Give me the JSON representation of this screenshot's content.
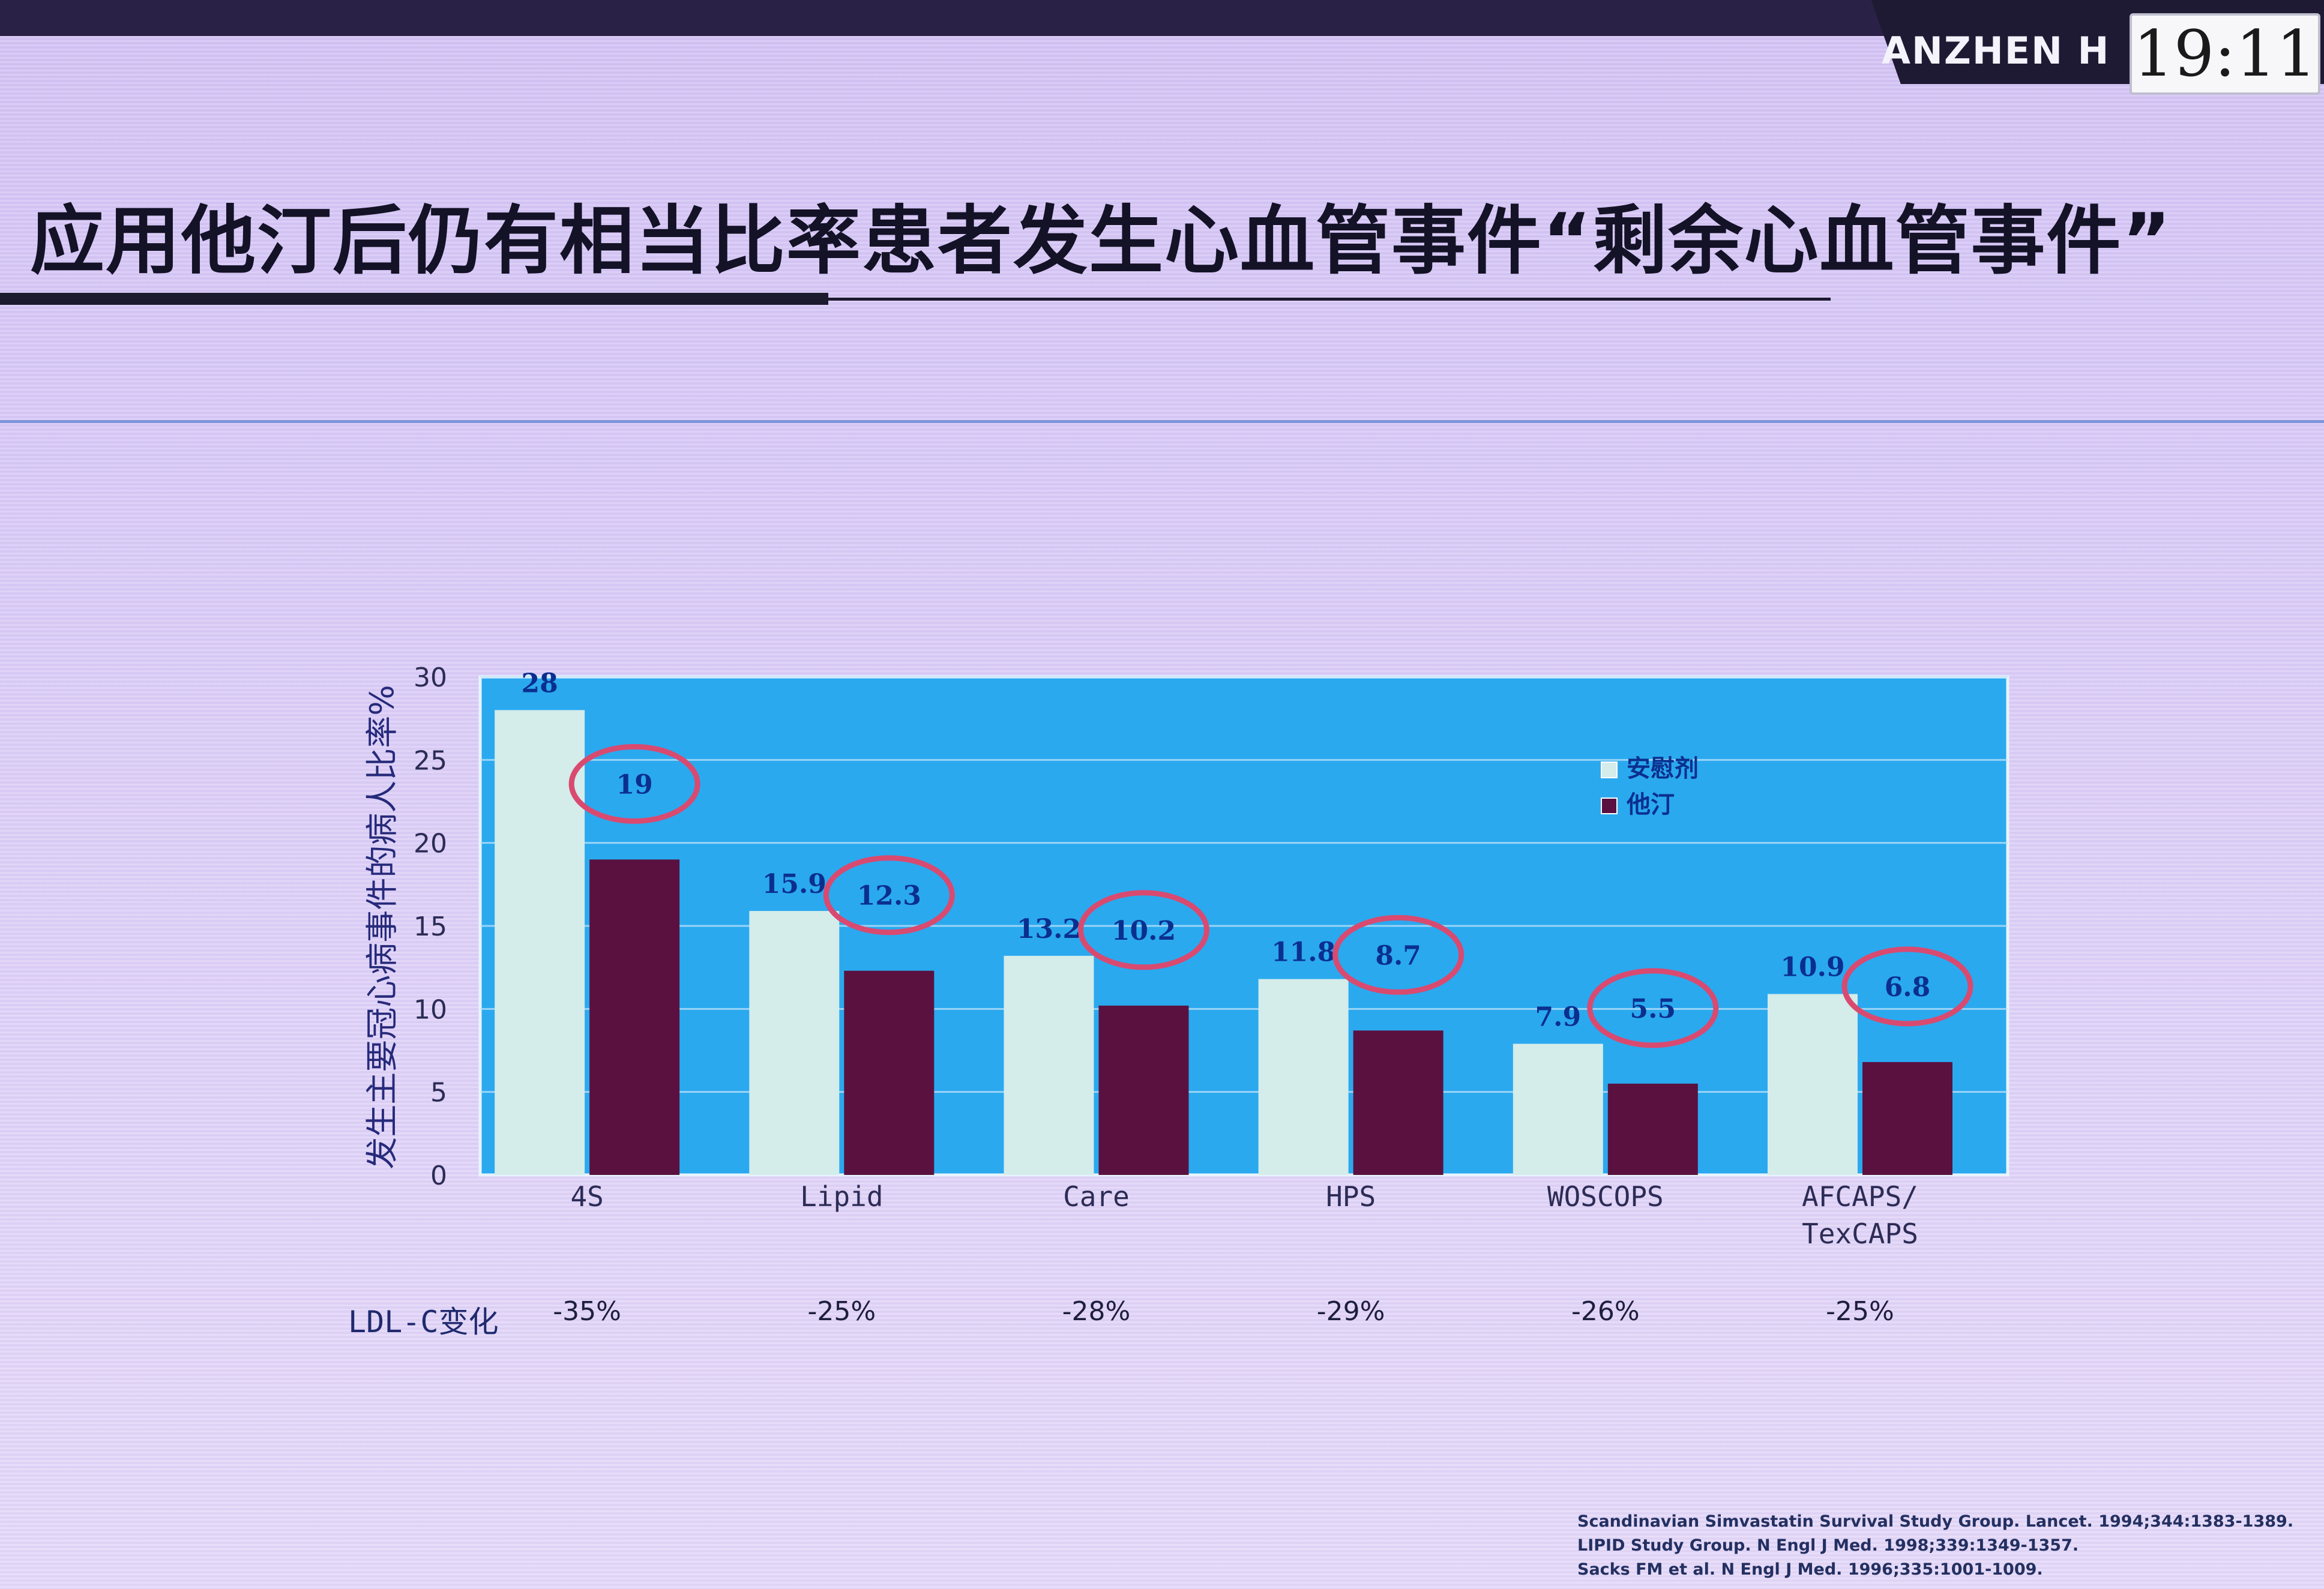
{
  "header": {
    "brand": "ANZHEN H",
    "clock": "19:11"
  },
  "slide": {
    "title": "应用他汀后仍有相当比率患者发生心血管事件“剩余心血管事件”",
    "ldl_label": "LDL-C变化",
    "references": [
      "Scandinavian Simvastatin Survival Study Group. Lancet. 1994;344:1383-1389.",
      "LIPID Study Group. N Engl J Med. 1998;339:1349-1357.",
      "Sacks FM et al. N Engl J Med. 1996;335:1001-1009."
    ]
  },
  "colors": {
    "plot_bg": "#2aa9ef",
    "placebo": "#d4ecea",
    "statin": "#5a1140",
    "value_text": "#0b2f8e",
    "circle": "#d94a70"
  },
  "chart_data": {
    "type": "bar",
    "title": "",
    "xlabel": "",
    "ylabel": "发生主要冠心病事件的病人比率%",
    "ylim": [
      0,
      30
    ],
    "yticks": [
      0,
      5,
      10,
      15,
      20,
      25,
      30
    ],
    "grid": true,
    "legend_position": "top-right",
    "categories": [
      "4S",
      "Lipid",
      "Care",
      "HPS",
      "WOSCOPS",
      "AFCAPS/TexCAPS"
    ],
    "category_lines": [
      [
        "4S"
      ],
      [
        "Lipid"
      ],
      [
        "Care"
      ],
      [
        "HPS"
      ],
      [
        "WOSCOPS"
      ],
      [
        "AFCAPS/",
        "TexCAPS"
      ]
    ],
    "series": [
      {
        "name": "安慰剂",
        "values": [
          28,
          15.9,
          13.2,
          11.8,
          7.9,
          10.9
        ],
        "labels": [
          "28",
          "15.9",
          "13.2",
          "11.8",
          "7.9",
          "10.9"
        ]
      },
      {
        "name": "他汀",
        "values": [
          19,
          12.3,
          10.2,
          8.7,
          5.5,
          6.8
        ],
        "labels": [
          "19",
          "12.3",
          "10.2",
          "8.7",
          "5.5",
          "6.8"
        ],
        "circled": true
      }
    ],
    "ldl_change": [
      "-35%",
      "-25%",
      "-28%",
      "-29%",
      "-26%",
      "-25%"
    ]
  }
}
